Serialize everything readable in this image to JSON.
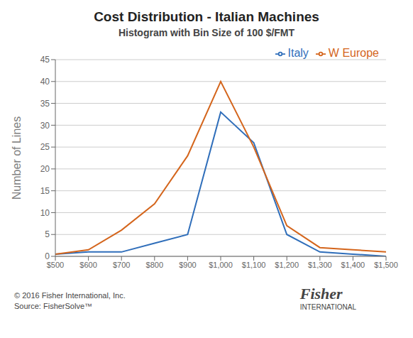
{
  "chart_data": {
    "type": "line",
    "title": "Cost Distribution - Italian Machines",
    "subtitle": "Histogram with Bin Size of 100 $/FMT",
    "ylabel": "Number of Lines",
    "x": [
      500,
      600,
      700,
      800,
      900,
      1000,
      1100,
      1200,
      1300,
      1400,
      1500
    ],
    "series": [
      {
        "name": "Italy",
        "color": "#2F6EBA",
        "values": [
          0.5,
          1,
          1,
          3,
          5,
          33,
          26,
          5,
          1,
          0.5,
          0
        ]
      },
      {
        "name": "W Europe",
        "color": "#D4651C",
        "values": [
          0.5,
          1.5,
          6,
          12,
          23,
          40,
          25,
          7,
          2,
          1.5,
          1
        ]
      }
    ],
    "xlim": [
      500,
      1500
    ],
    "xticks": [
      {
        "value": 500,
        "label": "$500"
      },
      {
        "value": 600,
        "label": "$600"
      },
      {
        "value": 700,
        "label": "$700"
      },
      {
        "value": 800,
        "label": "$800"
      },
      {
        "value": 900,
        "label": "$900"
      },
      {
        "value": 1000,
        "label": "$1,000"
      },
      {
        "value": 1100,
        "label": "$1,100"
      },
      {
        "value": 1200,
        "label": "$1,200"
      },
      {
        "value": 1300,
        "label": "$1,300"
      },
      {
        "value": 1400,
        "label": "$1,400"
      },
      {
        "value": 1500,
        "label": "$1,500"
      }
    ],
    "ylim": [
      0,
      45
    ],
    "yticks": [
      0,
      5,
      10,
      15,
      20,
      25,
      30,
      35,
      40,
      45
    ],
    "grid": "y",
    "legend": "upper right",
    "annotations": [
      "© 2016 Fisher International, Inc.",
      "Source: FisherSolve™",
      "Fisher",
      "INTERNATIONAL"
    ]
  }
}
